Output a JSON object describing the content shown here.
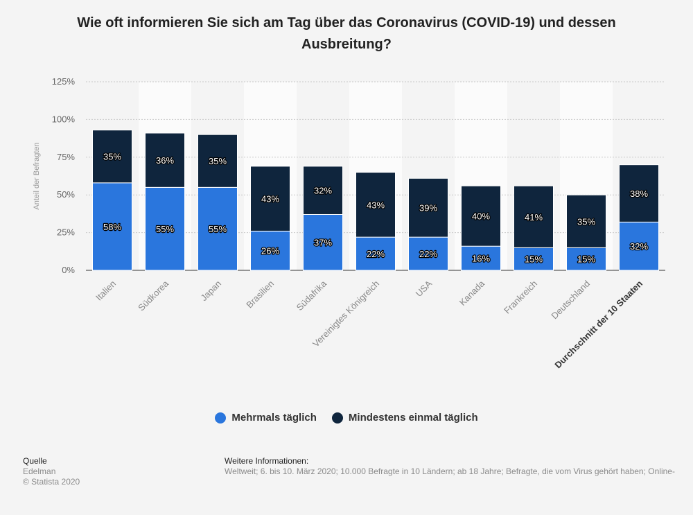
{
  "title": "Wie oft informieren Sie sich am Tag über das Coronavirus (COVID-19) und dessen Ausbreitung?",
  "chart_data": {
    "type": "bar",
    "stacked": true,
    "ylabel": "Anteil der Befragten",
    "ylim": [
      0,
      125
    ],
    "yticks": [
      "0%",
      "25%",
      "50%",
      "75%",
      "100%",
      "125%"
    ],
    "ytick_values": [
      0,
      25,
      50,
      75,
      100,
      125
    ],
    "grid": true,
    "legend_position": "bottom",
    "categories": [
      "Italien",
      "Südkorea",
      "Japan",
      "Brasilien",
      "Südafrika",
      "Vereinigtes Königreich",
      "USA",
      "Kanada",
      "Frankreich",
      "Deutschland",
      "Durchschnitt der 10 Staaten"
    ],
    "series": [
      {
        "name": "Mehrmals täglich",
        "color": "#2a76dd",
        "values": [
          58,
          55,
          55,
          26,
          37,
          22,
          22,
          16,
          15,
          15,
          32
        ],
        "labels": [
          "58%",
          "55%",
          "55%",
          "26%",
          "37%",
          "22%",
          "22%",
          "16%",
          "15%",
          "15%",
          "32%"
        ]
      },
      {
        "name": "Mindestens einmal täglich",
        "color": "#0f253d",
        "values": [
          35,
          36,
          35,
          43,
          32,
          43,
          39,
          40,
          41,
          35,
          38
        ],
        "labels": [
          "35%",
          "36%",
          "35%",
          "43%",
          "32%",
          "43%",
          "39%",
          "40%",
          "41%",
          "35%",
          "38%"
        ]
      }
    ]
  },
  "legend": {
    "items": [
      {
        "label": "Mehrmals täglich",
        "color": "#2a76dd"
      },
      {
        "label": "Mindestens einmal täglich",
        "color": "#0f253d"
      }
    ]
  },
  "footer": {
    "source_heading": "Quelle",
    "source": "Edelman",
    "copyright": "© Statista 2020",
    "info_heading": "Weitere Informationen:",
    "info": "Weltweit; 6. bis 10. März 2020; 10.000 Befragte in 10 Ländern; ab 18 Jahre; Befragte, die vom Virus gehört haben; Online-"
  }
}
